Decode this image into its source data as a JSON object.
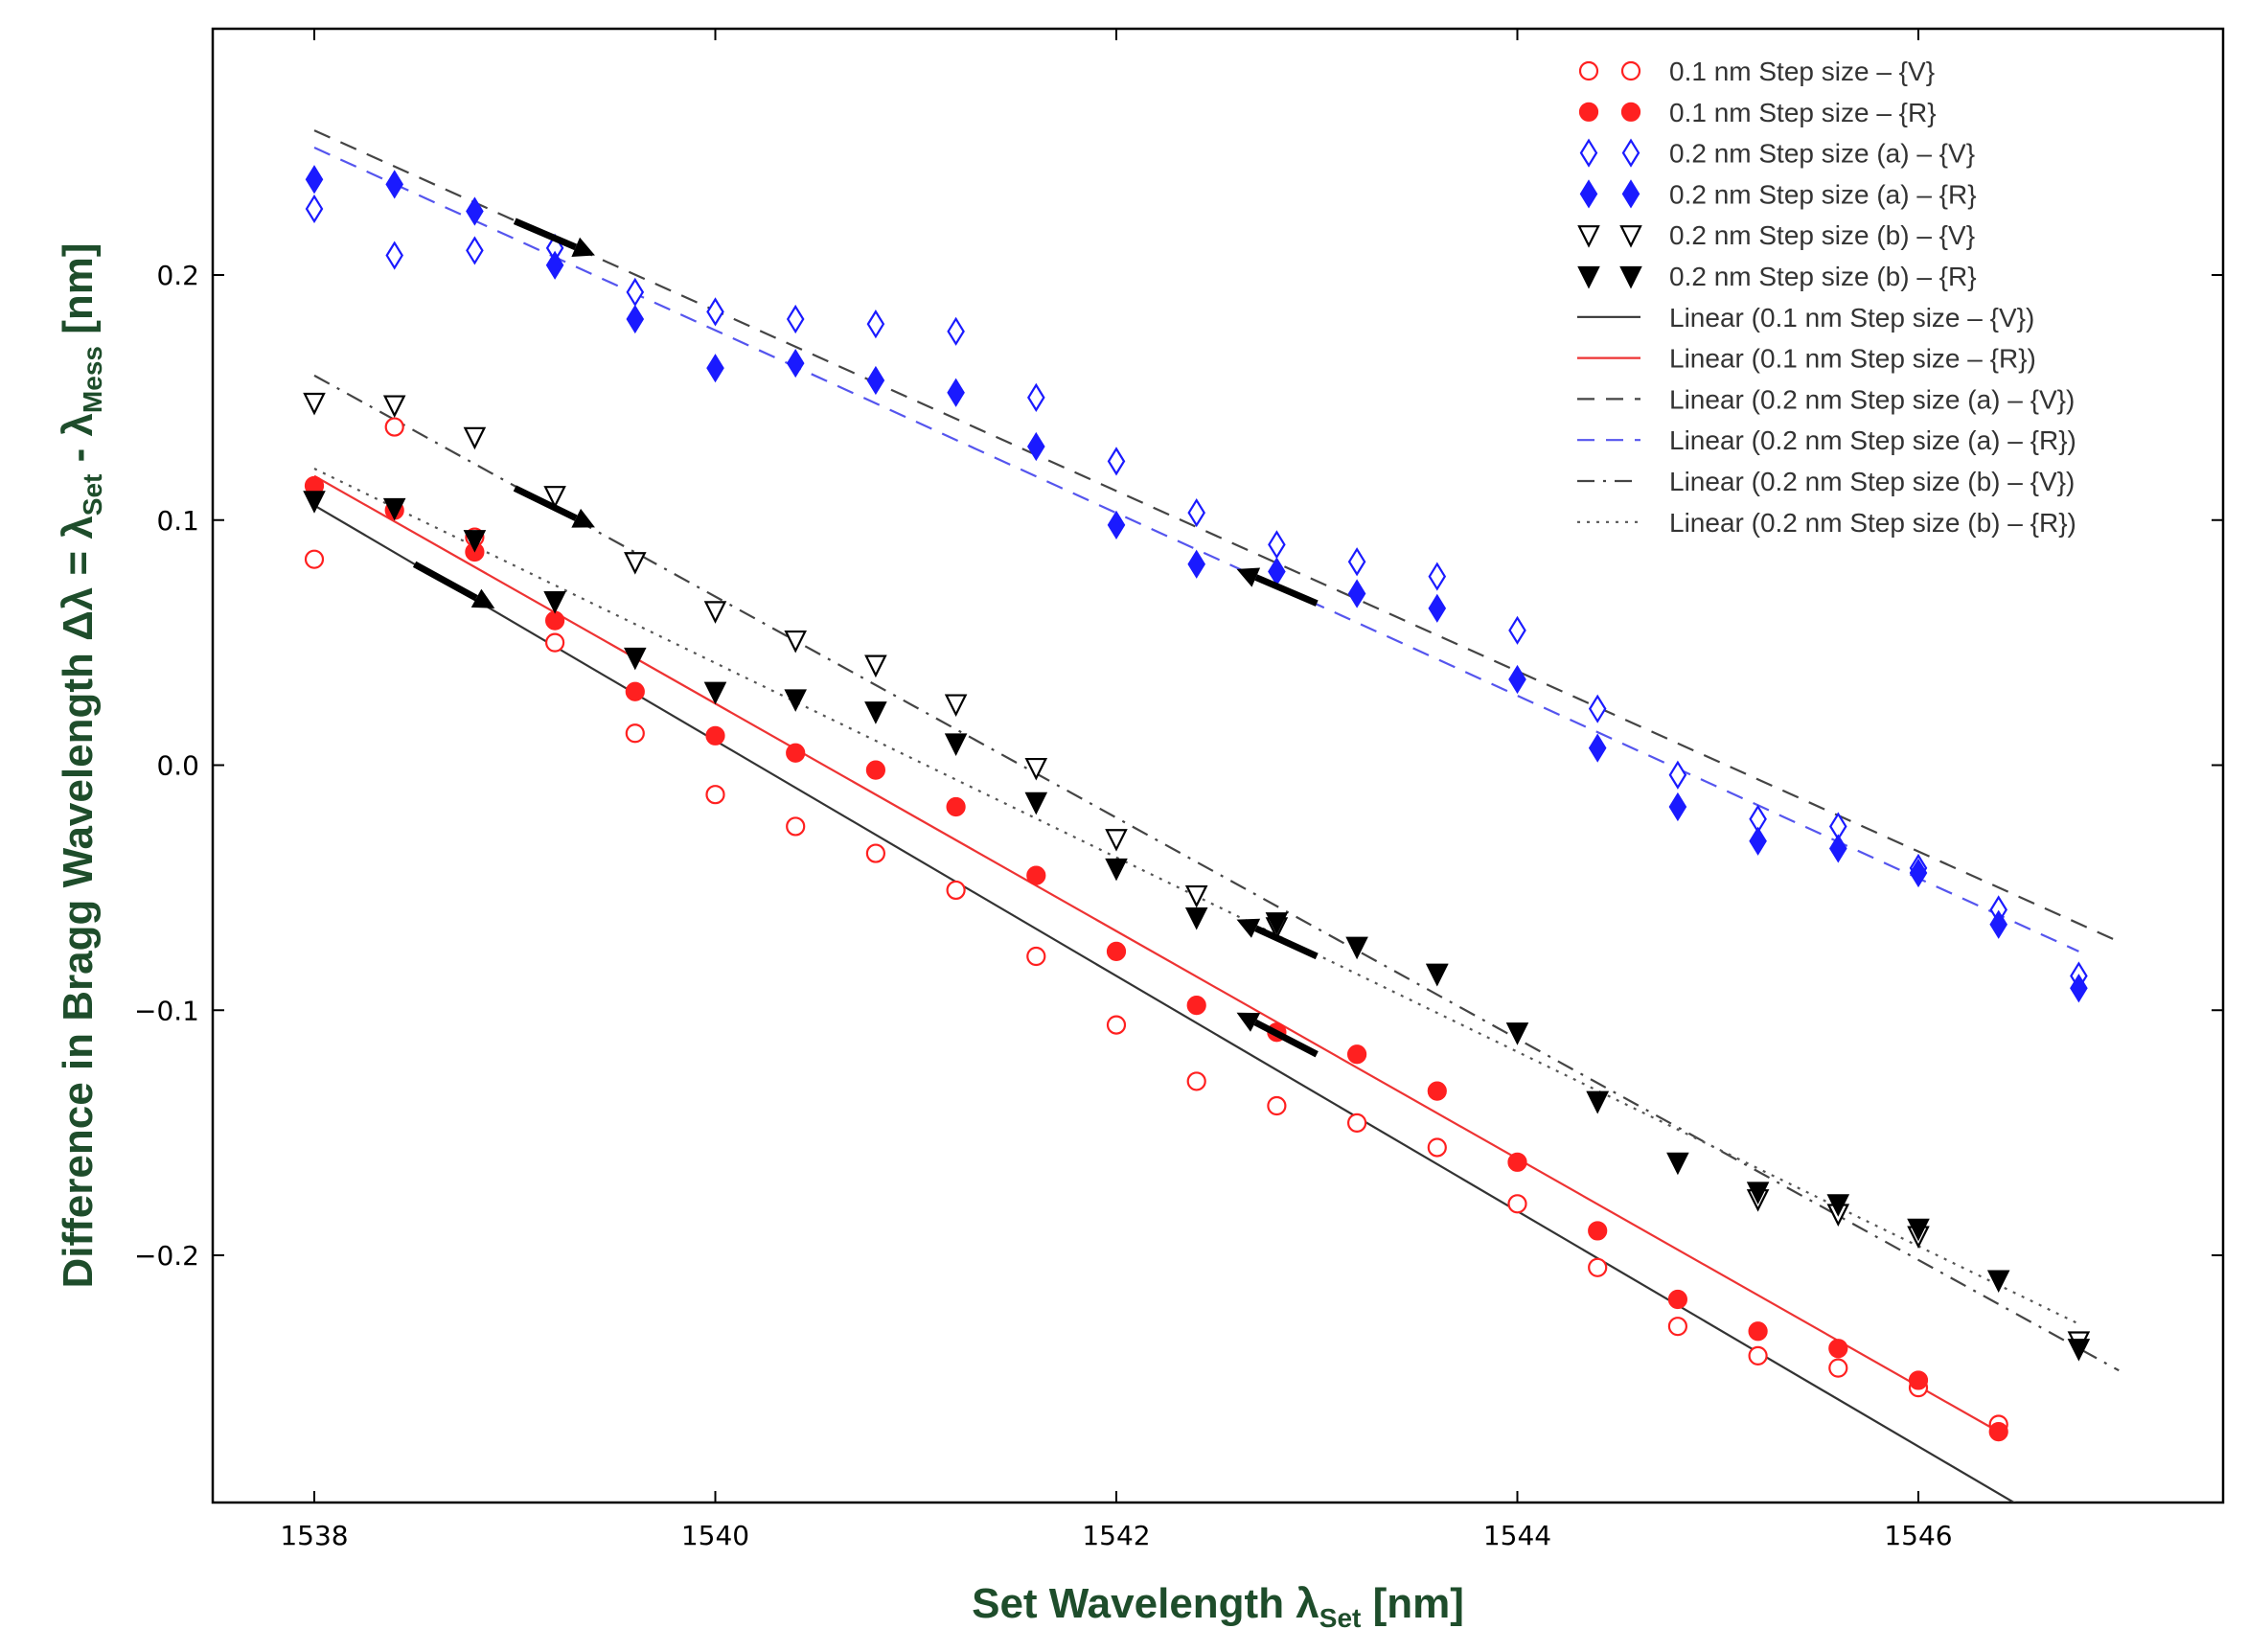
{
  "chart_data": {
    "type": "scatter",
    "title": "",
    "xlabel": "Set Wavelength λSet [nm]",
    "xlabel_parts": {
      "main": "Set Wavelength λ",
      "sub": "Set",
      "end": " [nm]"
    },
    "ylabel": "Difference in Bragg Wavelength Δλ = λSet - λMess [nm]",
    "ylabel_parts": {
      "main": "Difference in Bragg Wavelength Δλ = λ",
      "sub1": "Set",
      "mid": " - λ",
      "sub2": "Mess",
      "end": " [nm]"
    },
    "xlim": [
      1537.5,
      1547.5
    ],
    "ylim": [
      -0.3,
      0.3
    ],
    "xticks": [
      1538,
      1540,
      1542,
      1544,
      1546
    ],
    "xtick_labels": [
      "1538",
      "1540",
      "1542",
      "1544",
      "1546"
    ],
    "yticks": [
      -0.2,
      -0.1,
      0.0,
      0.1,
      0.2
    ],
    "ytick_labels": [
      "−0.2",
      "−0.1",
      "0.0",
      "0.1",
      "0.2"
    ],
    "legend_position": "top-right",
    "colors": {
      "red": "#ff2020",
      "blue": "#1a1aff",
      "black": "#000000",
      "blue_line": "#5555ee",
      "red_line": "#ee3333",
      "title_green": "#1e4d2b"
    },
    "series": [
      {
        "name": "0.1 nm Step size – {V}",
        "marker": "circle-open",
        "color": "#ff2020",
        "x": [
          1538,
          1538.4,
          1538.8,
          1539.2,
          1539.6,
          1540,
          1540.4,
          1540.8,
          1541.2,
          1541.6,
          1542,
          1542.4,
          1542.8,
          1543.2,
          1543.6,
          1544,
          1544.4,
          1544.8,
          1545.2,
          1545.6,
          1546,
          1546.4
        ],
        "y": [
          0.084,
          0.138,
          0.093,
          0.05,
          0.013,
          -0.012,
          -0.025,
          -0.036,
          -0.051,
          -0.078,
          -0.106,
          -0.129,
          -0.139,
          -0.146,
          -0.156,
          -0.179,
          -0.205,
          -0.229,
          -0.241,
          -0.246,
          -0.254,
          -0.269
        ]
      },
      {
        "name": "0.1 nm Step size – {R}",
        "marker": "circle-filled",
        "color": "#ff2020",
        "x": [
          1538,
          1538.4,
          1538.8,
          1539.2,
          1539.6,
          1540,
          1540.4,
          1540.8,
          1541.2,
          1541.6,
          1542,
          1542.4,
          1542.8,
          1543.2,
          1543.6,
          1544,
          1544.4,
          1544.8,
          1545.2,
          1545.6,
          1546,
          1546.4
        ],
        "y": [
          0.114,
          0.104,
          0.087,
          0.059,
          0.03,
          0.012,
          0.005,
          -0.002,
          -0.017,
          -0.045,
          -0.076,
          -0.098,
          -0.109,
          -0.118,
          -0.133,
          -0.162,
          -0.19,
          -0.218,
          -0.231,
          -0.238,
          -0.251,
          -0.272
        ]
      },
      {
        "name": "0.2 nm Step size (a) – {V}",
        "marker": "diamond-open",
        "color": "#1a1aff",
        "x": [
          1538,
          1538.4,
          1538.8,
          1539.2,
          1539.6,
          1540,
          1540.4,
          1540.8,
          1541.2,
          1541.6,
          1542,
          1542.4,
          1542.8,
          1543.2,
          1543.6,
          1544,
          1544.4,
          1544.8,
          1545.2,
          1545.6,
          1546,
          1546.4,
          1546.8
        ],
        "y": [
          0.227,
          0.208,
          0.21,
          0.211,
          0.193,
          0.185,
          0.182,
          0.18,
          0.177,
          0.15,
          0.124,
          0.103,
          0.09,
          0.083,
          0.077,
          0.055,
          0.023,
          -0.004,
          -0.022,
          -0.025,
          -0.042,
          -0.059,
          -0.086
        ]
      },
      {
        "name": "0.2 nm Step size (a) – {R}",
        "marker": "diamond-filled",
        "color": "#1a1aff",
        "x": [
          1538,
          1538.4,
          1538.8,
          1539.2,
          1539.6,
          1540,
          1540.4,
          1540.8,
          1541.2,
          1541.6,
          1542,
          1542.4,
          1542.8,
          1543.2,
          1543.6,
          1544,
          1544.4,
          1544.8,
          1545.2,
          1545.6,
          1546,
          1546.4,
          1546.8
        ],
        "y": [
          0.239,
          0.237,
          0.226,
          0.204,
          0.182,
          0.162,
          0.164,
          0.157,
          0.152,
          0.13,
          0.098,
          0.082,
          0.079,
          0.07,
          0.064,
          0.035,
          0.007,
          -0.017,
          -0.031,
          -0.034,
          -0.044,
          -0.065,
          -0.091
        ]
      },
      {
        "name": "0.2 nm Step size (b) – {V}",
        "marker": "triangle-open",
        "color": "#000000",
        "x": [
          1538,
          1538.4,
          1538.8,
          1539.2,
          1539.6,
          1540,
          1540.4,
          1540.8,
          1541.2,
          1541.6,
          1542,
          1542.4,
          1542.8,
          1543.6,
          1544.4,
          1545.2,
          1545.6,
          1546,
          1546.8
        ],
        "y": [
          0.148,
          0.147,
          0.134,
          0.11,
          0.083,
          0.063,
          0.051,
          0.041,
          0.025,
          -0.001,
          -0.03,
          -0.053,
          -0.066,
          -0.085,
          -0.137,
          -0.177,
          -0.183,
          -0.192,
          -0.235
        ]
      },
      {
        "name": "0.2 nm Step size (b) – {R}",
        "marker": "triangle-filled",
        "color": "#000000",
        "x": [
          1538,
          1538.4,
          1538.8,
          1539.2,
          1539.6,
          1540,
          1540.4,
          1540.8,
          1541.2,
          1541.6,
          1542,
          1542.4,
          1542.8,
          1543.2,
          1543.6,
          1544,
          1544.4,
          1544.8,
          1545.2,
          1545.6,
          1546,
          1546.4,
          1546.8
        ],
        "y": [
          0.108,
          0.105,
          0.092,
          0.067,
          0.044,
          0.03,
          0.027,
          0.022,
          0.009,
          -0.015,
          -0.042,
          -0.062,
          -0.064,
          -0.074,
          -0.085,
          -0.109,
          -0.137,
          -0.162,
          -0.174,
          -0.179,
          -0.189,
          -0.21,
          -0.238
        ]
      }
    ],
    "fit_lines": [
      {
        "name": "Linear (0.1 nm Step size – {V})",
        "style": "solid",
        "color": "#333333",
        "x": [
          1538,
          1546.5
        ],
        "y": [
          0.106,
          -0.302
        ]
      },
      {
        "name": "Linear (0.1 nm Step size – {R})",
        "style": "solid",
        "color": "#ee3333",
        "x": [
          1538,
          1546.4
        ],
        "y": [
          0.118,
          -0.272
        ]
      },
      {
        "name": "Linear (0.2 nm Step size (a) – {V})",
        "style": "dashed",
        "color": "#444444",
        "x": [
          1538,
          1547
        ],
        "y": [
          0.259,
          -0.072
        ]
      },
      {
        "name": "Linear (0.2 nm Step size (a) – {R})",
        "style": "dashed",
        "color": "#5555ee",
        "x": [
          1538,
          1546.8
        ],
        "y": [
          0.252,
          -0.076
        ]
      },
      {
        "name": "Linear (0.2 nm Step size (b) – {V})",
        "style": "dashdot",
        "color": "#444444",
        "x": [
          1538,
          1547
        ],
        "y": [
          0.159,
          -0.247
        ]
      },
      {
        "name": "Linear (0.2 nm Step size (b) – {R})",
        "style": "dotted",
        "color": "#555555",
        "x": [
          1538,
          1546.8
        ],
        "y": [
          0.121,
          -0.228
        ]
      }
    ],
    "annotations": [
      {
        "type": "arrow",
        "direction": "right",
        "from": [
          1539.0,
          0.222
        ],
        "to": [
          1539.4,
          0.208
        ]
      },
      {
        "type": "arrow",
        "direction": "right",
        "from": [
          1539.0,
          0.113
        ],
        "to": [
          1539.4,
          0.097
        ]
      },
      {
        "type": "arrow",
        "direction": "right",
        "from": [
          1538.5,
          0.082
        ],
        "to": [
          1538.9,
          0.064
        ]
      },
      {
        "type": "arrow",
        "direction": "left",
        "from": [
          1543.0,
          0.066
        ],
        "to": [
          1542.6,
          0.08
        ]
      },
      {
        "type": "arrow",
        "direction": "left",
        "from": [
          1543.0,
          -0.078
        ],
        "to": [
          1542.6,
          -0.063
        ]
      },
      {
        "type": "arrow",
        "direction": "left",
        "from": [
          1543.0,
          -0.118
        ],
        "to": [
          1542.6,
          -0.101
        ]
      }
    ]
  }
}
